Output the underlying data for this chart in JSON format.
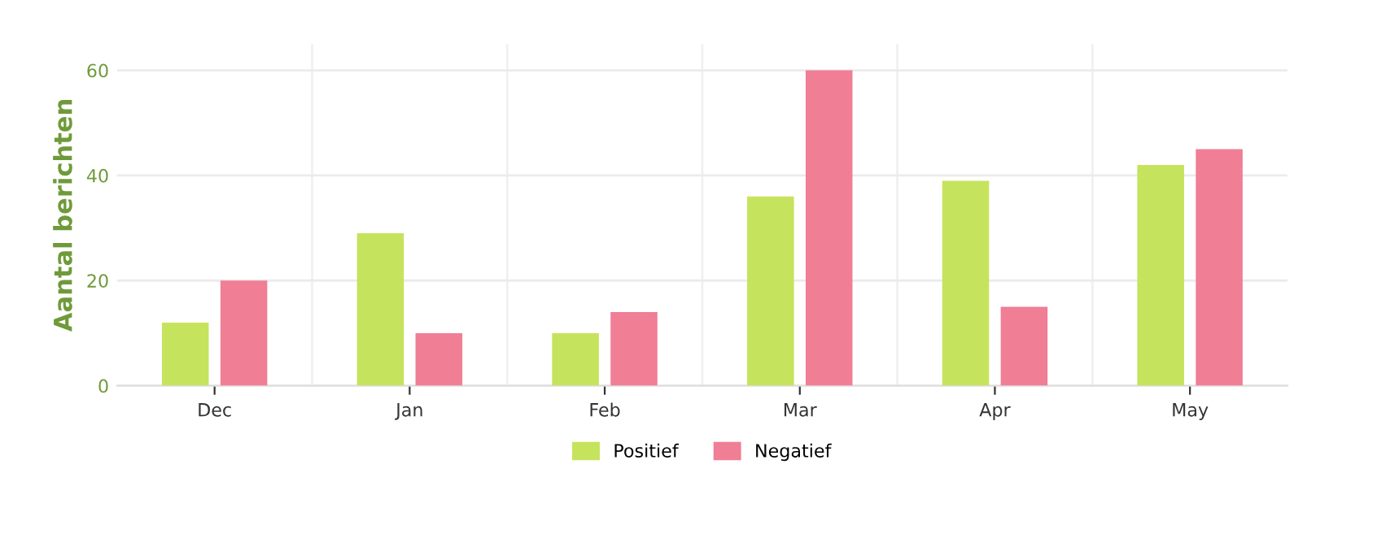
{
  "chart_data": {
    "type": "bar",
    "ylabel": "Aantal berichten",
    "categories": [
      "Dec",
      "Jan",
      "Feb",
      "Mar",
      "Apr",
      "May"
    ],
    "series": [
      {
        "name": "Positief",
        "color": "#c5e35c",
        "values": [
          12,
          29,
          10,
          36,
          39,
          42
        ]
      },
      {
        "name": "Negatief",
        "color": "#f07e95",
        "values": [
          20,
          10,
          14,
          60,
          15,
          45
        ]
      }
    ],
    "ylim": [
      0,
      65
    ],
    "yticks": [
      0,
      20,
      40,
      60
    ],
    "grid": true,
    "legend": "bottom"
  }
}
